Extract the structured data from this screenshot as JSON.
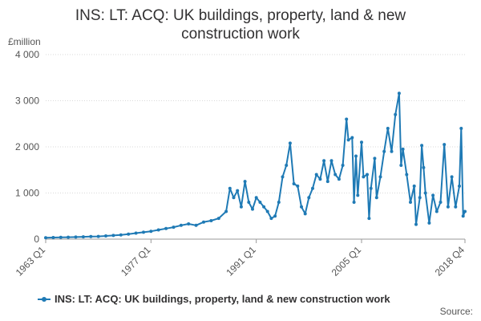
{
  "chart_data": {
    "type": "line",
    "title_lines": [
      "INS: LT: ACQ: UK buildings, property, land & new",
      "construction work"
    ],
    "ylabel": "£million",
    "ylim": [
      0,
      4000
    ],
    "yticks": [
      0,
      1000,
      2000,
      3000,
      4000
    ],
    "ytick_labels": [
      "0",
      "1 000",
      "2 000",
      "3 000",
      "4 000"
    ],
    "x_start": "1963 Q1",
    "x_end": "2018 Q4",
    "xticks": [
      "1963 Q1",
      "1977 Q1",
      "1991 Q1",
      "2005 Q1",
      "2018 Q4"
    ],
    "grid": "horizontal",
    "legend_position": "bottom",
    "colors": {
      "series": "#1f7ab5",
      "grid": "#d9d9d9",
      "axis": "#999999"
    },
    "series": [
      {
        "name": "INS: LT: ACQ: UK buildings, property, land & new construction work",
        "points": [
          [
            "1963 Q1",
            30
          ],
          [
            "1964 Q1",
            35
          ],
          [
            "1965 Q1",
            38
          ],
          [
            "1966 Q1",
            42
          ],
          [
            "1967 Q1",
            45
          ],
          [
            "1968 Q1",
            50
          ],
          [
            "1969 Q1",
            55
          ],
          [
            "1970 Q1",
            60
          ],
          [
            "1971 Q1",
            70
          ],
          [
            "1972 Q1",
            80
          ],
          [
            "1973 Q1",
            90
          ],
          [
            "1974 Q1",
            110
          ],
          [
            "1975 Q1",
            130
          ],
          [
            "1976 Q1",
            150
          ],
          [
            "1977 Q1",
            170
          ],
          [
            "1978 Q1",
            200
          ],
          [
            "1979 Q1",
            230
          ],
          [
            "1980 Q1",
            260
          ],
          [
            "1981 Q1",
            300
          ],
          [
            "1982 Q1",
            330
          ],
          [
            "1983 Q1",
            300
          ],
          [
            "1984 Q1",
            370
          ],
          [
            "1985 Q1",
            400
          ],
          [
            "1986 Q1",
            450
          ],
          [
            "1987 Q1",
            600
          ],
          [
            "1987 Q3",
            1100
          ],
          [
            "1988 Q1",
            900
          ],
          [
            "1988 Q3",
            1050
          ],
          [
            "1989 Q1",
            700
          ],
          [
            "1989 Q3",
            1250
          ],
          [
            "1990 Q1",
            800
          ],
          [
            "1990 Q3",
            650
          ],
          [
            "1991 Q1",
            900
          ],
          [
            "1991 Q3",
            800
          ],
          [
            "1992 Q1",
            700
          ],
          [
            "1992 Q3",
            600
          ],
          [
            "1993 Q1",
            450
          ],
          [
            "1993 Q3",
            500
          ],
          [
            "1994 Q1",
            800
          ],
          [
            "1994 Q3",
            1350
          ],
          [
            "1995 Q1",
            1600
          ],
          [
            "1995 Q3",
            2080
          ],
          [
            "1996 Q1",
            1200
          ],
          [
            "1996 Q3",
            1150
          ],
          [
            "1997 Q1",
            700
          ],
          [
            "1997 Q3",
            550
          ],
          [
            "1998 Q1",
            900
          ],
          [
            "1998 Q3",
            1100
          ],
          [
            "1999 Q1",
            1400
          ],
          [
            "1999 Q3",
            1300
          ],
          [
            "2000 Q1",
            1700
          ],
          [
            "2000 Q3",
            1250
          ],
          [
            "2001 Q1",
            1700
          ],
          [
            "2001 Q3",
            1400
          ],
          [
            "2002 Q1",
            1300
          ],
          [
            "2002 Q3",
            1600
          ],
          [
            "2003 Q1",
            2600
          ],
          [
            "2003 Q2",
            2150
          ],
          [
            "2003 Q4",
            2200
          ],
          [
            "2004 Q1",
            800
          ],
          [
            "2004 Q2",
            1800
          ],
          [
            "2004 Q3",
            950
          ],
          [
            "2005 Q1",
            2100
          ],
          [
            "2005 Q2",
            1350
          ],
          [
            "2005 Q4",
            1400
          ],
          [
            "2006 Q1",
            450
          ],
          [
            "2006 Q2",
            1100
          ],
          [
            "2006 Q4",
            1750
          ],
          [
            "2007 Q1",
            900
          ],
          [
            "2007 Q3",
            1350
          ],
          [
            "2008 Q1",
            1900
          ],
          [
            "2008 Q3",
            2400
          ],
          [
            "2009 Q1",
            1900
          ],
          [
            "2009 Q3",
            2700
          ],
          [
            "2010 Q1",
            3160
          ],
          [
            "2010 Q2",
            1600
          ],
          [
            "2010 Q3",
            1950
          ],
          [
            "2011 Q1",
            1400
          ],
          [
            "2011 Q3",
            800
          ],
          [
            "2012 Q1",
            1150
          ],
          [
            "2012 Q2",
            320
          ],
          [
            "2012 Q4",
            900
          ],
          [
            "2013 Q1",
            2030
          ],
          [
            "2013 Q2",
            1550
          ],
          [
            "2013 Q3",
            1000
          ],
          [
            "2014 Q1",
            350
          ],
          [
            "2014 Q3",
            950
          ],
          [
            "2015 Q1",
            600
          ],
          [
            "2015 Q3",
            800
          ],
          [
            "2016 Q1",
            2050
          ],
          [
            "2016 Q3",
            700
          ],
          [
            "2017 Q1",
            1350
          ],
          [
            "2017 Q3",
            700
          ],
          [
            "2018 Q1",
            1150
          ],
          [
            "2018 Q2",
            2400
          ],
          [
            "2018 Q3",
            500
          ],
          [
            "2018 Q4",
            600
          ]
        ]
      }
    ]
  },
  "footer": {
    "source_label": "Source:"
  }
}
